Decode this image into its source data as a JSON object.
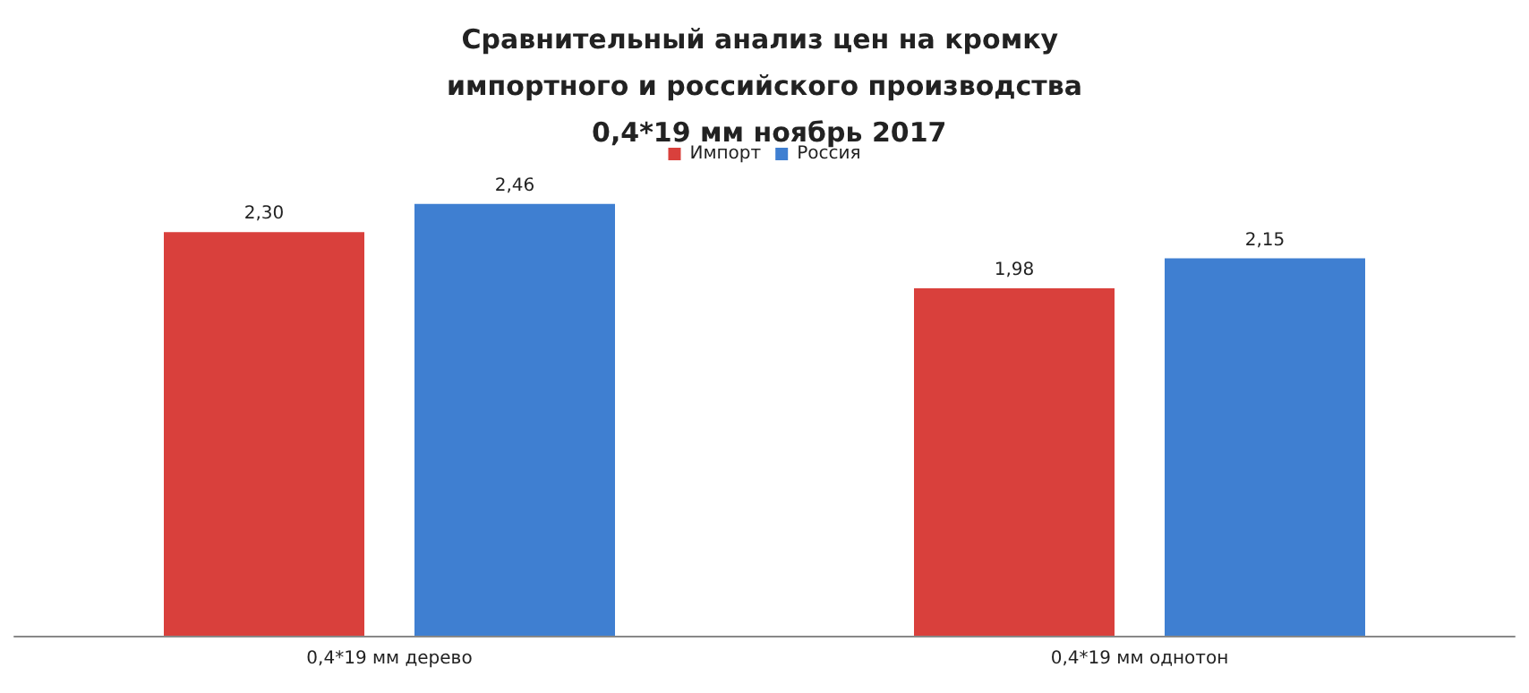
{
  "chart_data": {
    "type": "bar",
    "title": "Сравнительный анализ цен на кромку импортного и российского производства 0,4*19 мм ноябрь 2017",
    "categories": [
      "0,4*19 мм дерево",
      "0,4*19 мм однотон"
    ],
    "series": [
      {
        "name": "Импорт",
        "color": "#d9403c",
        "values": [
          2.3,
          1.98
        ],
        "value_labels": [
          "2,30",
          "1,98"
        ]
      },
      {
        "name": "Россия",
        "color": "#3f7fd1",
        "values": [
          2.46,
          2.15
        ],
        "value_labels": [
          "2,46",
          "2,15"
        ]
      }
    ],
    "legend": "top"
  }
}
